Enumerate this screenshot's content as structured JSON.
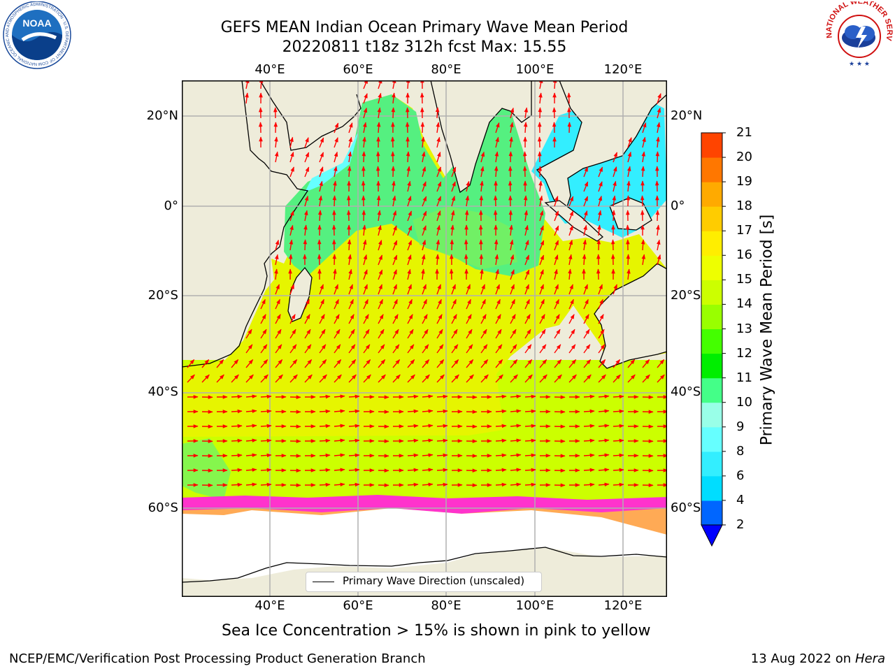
{
  "title": {
    "line1": "GEFS MEAN Indian Ocean Primary Wave Mean Period",
    "line2": "20220811 t18z 312h fcst   Max: 15.55"
  },
  "map": {
    "lon_labels": [
      "40°E",
      "60°E",
      "80°E",
      "100°E",
      "120°E"
    ],
    "lat_labels": [
      "20°N",
      "0°",
      "20°S",
      "40°S",
      "60°S"
    ],
    "extent": {
      "lon": [
        20,
        130
      ],
      "lat": [
        -75,
        28
      ]
    },
    "legend_label": "Primary Wave Direction (unscaled)"
  },
  "colorbar": {
    "label": "Primary Wave Mean Period [s]",
    "ticks": [
      "2",
      "4",
      "6",
      "8",
      "9",
      "10",
      "11",
      "12",
      "13",
      "14",
      "15",
      "16",
      "17",
      "18",
      "19",
      "20",
      "21"
    ],
    "colors": [
      "#0066ff",
      "#00ddff",
      "#33eeff",
      "#66ffff",
      "#99ffe8",
      "#44ff88",
      "#00ee00",
      "#44ff00",
      "#99ff00",
      "#ccff00",
      "#eeff00",
      "#ffee00",
      "#ffcc00",
      "#ffaa00",
      "#ff7700",
      "#ff4400",
      "#ff1100"
    ],
    "under_color": "#0000ff"
  },
  "colors": {
    "land": "#eeecda",
    "ocean_main": "#e6f500",
    "ocean_south": "#ccff00",
    "tropics": "#55f080",
    "tropics_alt": "#77f060",
    "cyan_zone": "#33eeff",
    "sea_ice_pink": "#ff33cc",
    "sea_ice_orange": "#ffaa55",
    "arrow": "#ff0000",
    "grid": "#b0b0b0"
  },
  "caption": "Sea Ice Concentration > 15% is shown in pink to yellow",
  "footer": {
    "left": "NCEP/EMC/Verification Post Processing Product Generation Branch",
    "right_date": "13 Aug 2022 on",
    "right_host": "Hera"
  },
  "logos": {
    "noaa": "NOAA",
    "noaa_ring": "NATIONAL OCEANIC AND ATMOSPHERIC ADMINISTRATION · U.S. DEPARTMENT OF COMMERCE",
    "nws_ring": "NATIONAL WEATHER SERVICE"
  }
}
